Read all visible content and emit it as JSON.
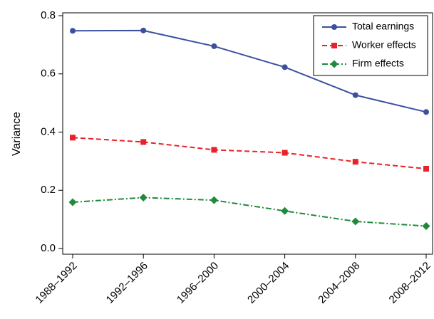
{
  "chart_data": {
    "type": "line",
    "y_label": "Variance",
    "categories": [
      "1988–1992",
      "1992–1996",
      "1996–2000",
      "2000–2004",
      "2004–2008",
      "2008–2012"
    ],
    "series": [
      {
        "name": "Total earnings",
        "color": "#3c50a0",
        "line_style": "solid",
        "marker": "circle",
        "values": [
          0.748,
          0.749,
          0.695,
          0.623,
          0.527,
          0.469
        ]
      },
      {
        "name": "Worker effects",
        "color": "#e8212a",
        "line_style": "dashed",
        "marker": "square",
        "values": [
          0.381,
          0.366,
          0.339,
          0.329,
          0.298,
          0.274
        ]
      },
      {
        "name": "Firm effects",
        "color": "#1f8a3c",
        "line_style": "dashdot",
        "marker": "diamond",
        "values": [
          0.159,
          0.175,
          0.166,
          0.129,
          0.093,
          0.077
        ]
      }
    ],
    "ylim": [
      0,
      0.8
    ],
    "yticks": [
      {
        "value": 0,
        "label": "0.0"
      },
      0.2,
      0.4,
      0.6,
      0.8
    ],
    "legend": "top-right",
    "grid": false
  }
}
